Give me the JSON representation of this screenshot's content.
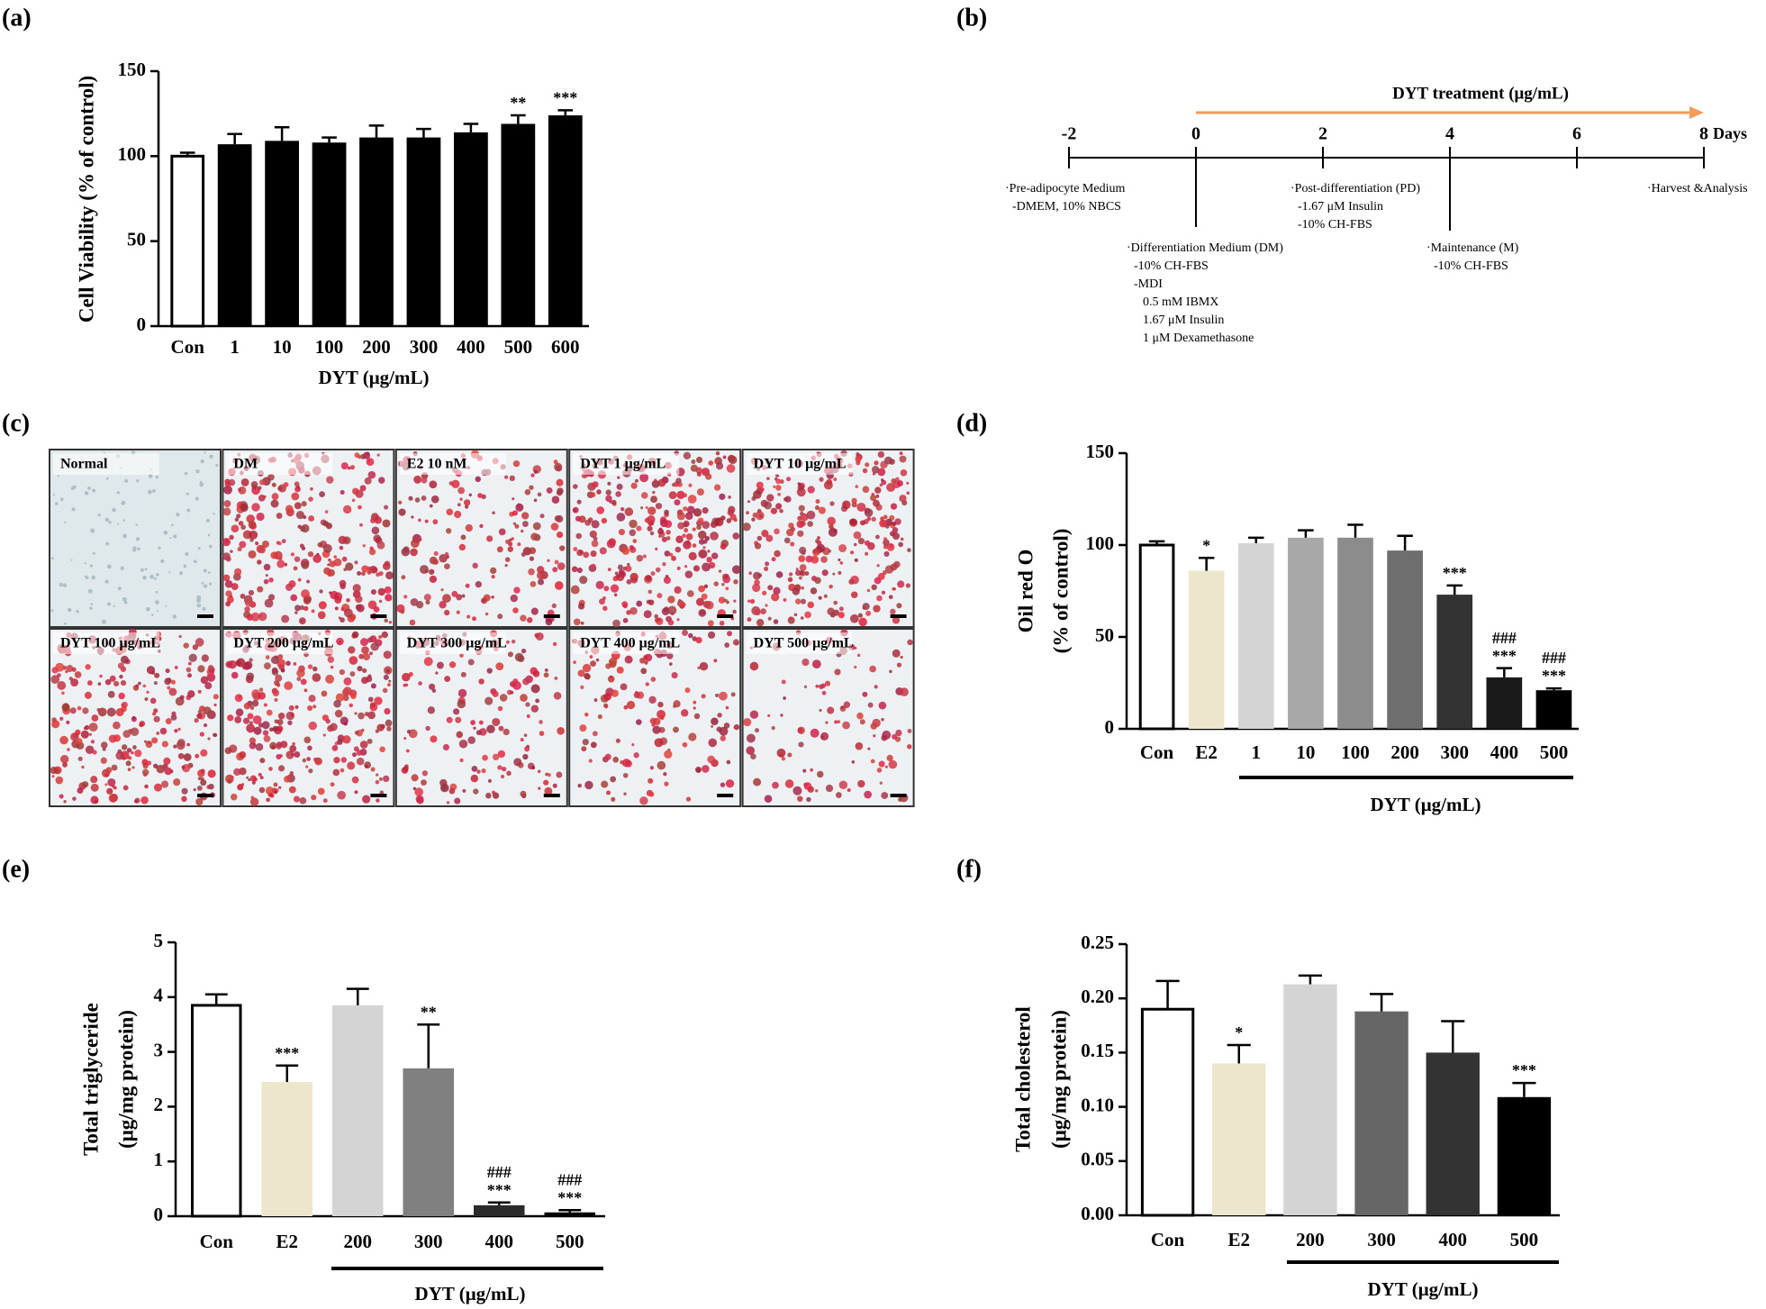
{
  "chart_data": [
    {
      "type": "bar",
      "label": "(a)",
      "ylabel": "Cell Viability (% of control)",
      "xlabel": "DYT (μg/mL)",
      "categories": [
        "Con",
        "1",
        "10",
        "100",
        "200",
        "300",
        "400",
        "500",
        "600"
      ],
      "values": [
        100,
        107,
        109,
        108,
        111,
        111,
        114,
        119,
        124
      ],
      "errors": [
        2,
        6,
        8,
        3,
        7,
        5,
        5,
        5,
        3
      ],
      "annotations": [
        null,
        null,
        null,
        null,
        null,
        null,
        null,
        "**",
        "***"
      ],
      "colors": [
        "#ffffff",
        "#000000",
        "#000000",
        "#000000",
        "#000000",
        "#000000",
        "#000000",
        "#000000",
        "#000000"
      ],
      "ylim": [
        0,
        150
      ],
      "yticks": [
        0,
        50,
        100,
        150
      ]
    },
    {
      "type": "bar",
      "label": "(d)",
      "ylabel": [
        "Oil red O",
        "(% of control)"
      ],
      "xlabel": "DYT (μg/mL)",
      "categories": [
        "Con",
        "E2",
        "1",
        "10",
        "100",
        "200",
        "300",
        "400",
        "500"
      ],
      "values": [
        100,
        86,
        101,
        104,
        104,
        97,
        73,
        28,
        21
      ],
      "errors": [
        2,
        7,
        3,
        4,
        7,
        8,
        5,
        5,
        1
      ],
      "annotations": [
        null,
        "*",
        null,
        null,
        null,
        null,
        "***",
        [
          "###",
          "***"
        ],
        [
          "###",
          "***"
        ]
      ],
      "colors": [
        "#ffffff",
        "#ece6cc",
        "#d4d4d4",
        "#a8a8a8",
        "#8c8c8c",
        "#6e6e6e",
        "#333333",
        "#1a1a1a",
        "#000000"
      ],
      "ylim": [
        0,
        150
      ],
      "yticks": [
        0,
        50,
        100,
        150
      ]
    },
    {
      "type": "bar",
      "label": "(e)",
      "ylabel": [
        "Total triglyceride",
        "(μg/mg protein)"
      ],
      "xlabel": "DYT (μg/mL)",
      "categories": [
        "Con",
        "E2",
        "200",
        "300",
        "400",
        "500"
      ],
      "values": [
        3.85,
        2.45,
        3.85,
        2.7,
        0.2,
        0.07
      ],
      "errors": [
        0.2,
        0.3,
        0.3,
        0.8,
        0.05,
        0.04
      ],
      "annotations": [
        null,
        "***",
        null,
        "**",
        [
          "###",
          "***"
        ],
        [
          "###",
          "***"
        ]
      ],
      "colors": [
        "#ffffff",
        "#ece6cc",
        "#d4d4d4",
        "#808080",
        "#2b2b2b",
        "#000000"
      ],
      "ylim": [
        0,
        5
      ],
      "yticks": [
        0,
        1,
        2,
        3,
        4,
        5
      ]
    },
    {
      "type": "bar",
      "label": "(f)",
      "ylabel": [
        "Total cholesterol",
        "(μg/mg protein)"
      ],
      "xlabel": "DYT (μg/mL)",
      "categories": [
        "Con",
        "E2",
        "200",
        "300",
        "400",
        "500"
      ],
      "values": [
        0.19,
        0.14,
        0.213,
        0.188,
        0.15,
        0.109
      ],
      "errors": [
        0.026,
        0.017,
        0.008,
        0.016,
        0.029,
        0.013
      ],
      "annotations": [
        null,
        "*",
        null,
        null,
        null,
        "***"
      ],
      "colors": [
        "#ffffff",
        "#ece6cc",
        "#d4d4d4",
        "#666666",
        "#333333",
        "#000000"
      ],
      "ylim": [
        0,
        0.25
      ],
      "yticks": [
        {
          "value": 0,
          "label": "0.00"
        },
        0.05,
        {
          "value": 0.1,
          "label": "0.10"
        },
        0.15,
        {
          "value": 0.2,
          "label": "0.20"
        },
        0.25
      ]
    }
  ],
  "timeline": {
    "label": "(b)",
    "title": "DYT treatment (μg/mL)",
    "ticks": [
      -2,
      0,
      2,
      4,
      6,
      8
    ],
    "unit": "Days",
    "notes": [
      [
        "·Pre-adipocyte Medium",
        "-DMEM, 10% NBCS"
      ],
      [
        "·Differentiation Medium (DM)",
        "-10% CH-FBS",
        "-MDI",
        "0.5 mM IBMX",
        "1.67 μM Insulin",
        "1 μM Dexamethasone"
      ],
      [
        "·Post-differentiation (PD)",
        "-1.67 μM Insulin",
        "-10% CH-FBS"
      ],
      [
        "·Maintenance (M)",
        "-10% CH-FBS"
      ],
      [
        "·Harvest &Analysis"
      ]
    ]
  },
  "micrographs": {
    "label": "(c)",
    "tiles": [
      "Normal",
      "DM",
      "E2 10 nM",
      "DYT 1 μg/mL",
      "DYT 10 μg/mL",
      "DYT 100 μg/mL",
      "DYT 200 μg/mL",
      "DYT 300 μg/mL",
      "DYT 400 μg/mL",
      "DYT 500 μg/mL"
    ]
  }
}
